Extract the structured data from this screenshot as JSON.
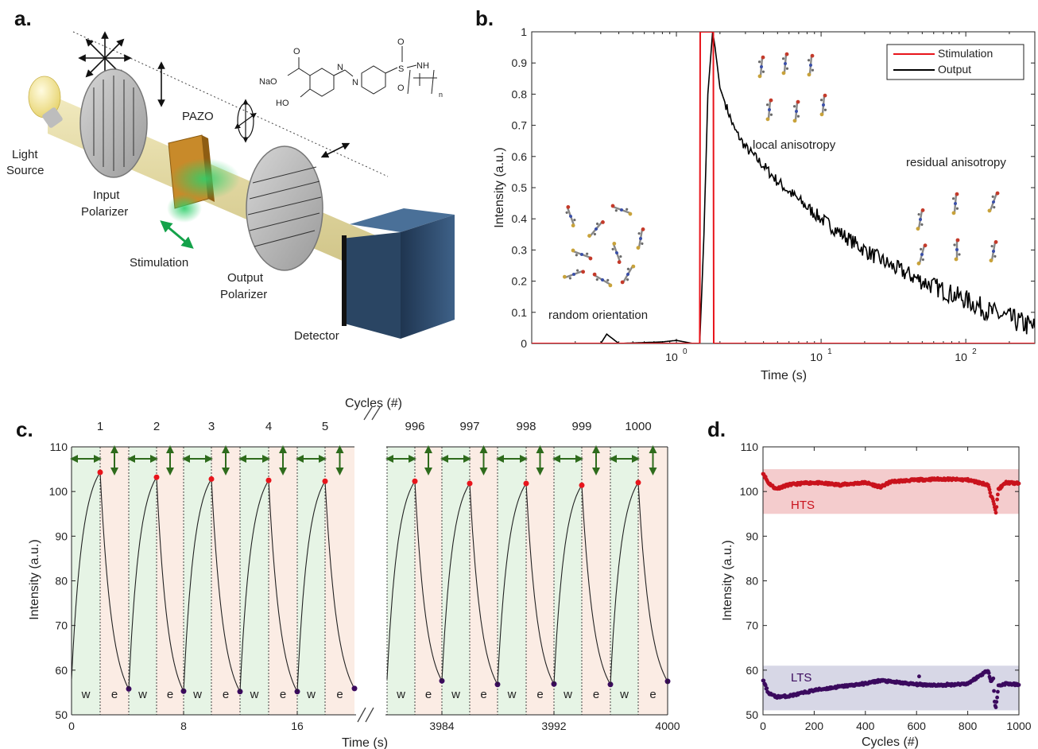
{
  "panels": {
    "a": "a.",
    "b": "b.",
    "c": "c.",
    "d": "d."
  },
  "schematic": {
    "light_source": [
      "Light",
      "Source"
    ],
    "input_polarizer": [
      "Input",
      "Polarizer"
    ],
    "pazo": "PAZO",
    "stimulation": "Stimulation",
    "output_polarizer": [
      "Output",
      "Polarizer"
    ],
    "detector": "Detector",
    "molecule": {
      "na": "NaO",
      "oh": "HO",
      "o": "O",
      "s": "S",
      "nh": "NH",
      "n": "n",
      "azo": "N"
    }
  },
  "colors": {
    "red": "#e8141b",
    "black": "#000000",
    "green_arrow": "#2e6b1c",
    "hts": "#c9131d",
    "lts": "#3b0a5e"
  },
  "chart_data": [
    {
      "panel": "b",
      "type": "line",
      "xlabel": "Time (s)",
      "ylabel": "Intensity (a.u.)",
      "xscale": "log",
      "xlim": [
        0.1,
        300
      ],
      "ylim": [
        0,
        1
      ],
      "xticks": [
        "10^0",
        "10^1",
        "10^2"
      ],
      "yticks": [
        "0",
        "0.1",
        "0.2",
        "0.3",
        "0.4",
        "0.5",
        "0.6",
        "0.7",
        "0.8",
        "0.9",
        "1"
      ],
      "legend": "top-right",
      "annotations": [
        "random orientation",
        "local anisotropy",
        "residual anisotropy"
      ],
      "series": [
        {
          "name": "Stimulation",
          "color": "#e8141b",
          "x": [
            0.1,
            1.45,
            1.46,
            1.8,
            1.81,
            300
          ],
          "y": [
            0,
            0,
            1,
            1,
            0,
            0
          ]
        },
        {
          "name": "Output",
          "color": "#000000",
          "x": [
            0.1,
            0.3,
            0.33,
            0.4,
            0.8,
            1.0,
            1.3,
            1.45,
            1.55,
            1.65,
            1.78,
            1.85,
            2.0,
            2.5,
            3,
            4,
            5,
            7,
            10,
            15,
            20,
            30,
            50,
            70,
            100,
            150,
            200,
            300
          ],
          "y": [
            0,
            0,
            0.03,
            0,
            0.005,
            0.01,
            0.0,
            0.0,
            0.35,
            0.8,
            1.0,
            0.95,
            0.82,
            0.69,
            0.63,
            0.57,
            0.52,
            0.46,
            0.4,
            0.34,
            0.3,
            0.25,
            0.2,
            0.17,
            0.14,
            0.1,
            0.08,
            0.05
          ]
        }
      ]
    },
    {
      "panel": "c",
      "type": "line",
      "xlabel": "Time (s)",
      "ylabel": "Intensity (a.u.)",
      "top_label": "Cycles  (#)",
      "ylim": [
        50,
        110
      ],
      "yticks": [
        "50",
        "60",
        "70",
        "80",
        "90",
        "100",
        "110"
      ],
      "xticks_left": [
        "0",
        "8",
        "16"
      ],
      "xticks_right": [
        "3984",
        "3992",
        "4000"
      ],
      "cycles": [
        "1",
        "2",
        "3",
        "4",
        "5",
        "996",
        "997",
        "998",
        "999",
        "1000"
      ],
      "phase_labels": [
        "w",
        "e"
      ],
      "peaks": [
        104.3,
        103.2,
        102.8,
        102.5,
        102.3,
        102.3,
        101.8,
        101.8,
        101.4,
        102.0
      ],
      "troughs": [
        55.8,
        55.3,
        55.2,
        55.2,
        55.9,
        57.6,
        56.8,
        56.9,
        56.8,
        57.5
      ],
      "start": 58.0
    },
    {
      "panel": "d",
      "type": "scatter",
      "xlabel": "Cycles (#)",
      "ylabel": "Intensity (a.u.)",
      "xlim": [
        0,
        1000
      ],
      "ylim": [
        50,
        110
      ],
      "xticks": [
        "0",
        "200",
        "400",
        "600",
        "800",
        "1000"
      ],
      "yticks": [
        "50",
        "60",
        "70",
        "80",
        "90",
        "100",
        "110"
      ],
      "bands": [
        {
          "name": "HTS",
          "range": [
            95,
            105
          ]
        },
        {
          "name": "LTS",
          "range": [
            51,
            61
          ]
        }
      ],
      "series": [
        {
          "name": "HTS",
          "color": "#c9131d",
          "x": [
            0,
            20,
            50,
            100,
            150,
            200,
            300,
            400,
            460,
            500,
            600,
            700,
            800,
            880,
            890,
            900,
            910,
            920,
            950,
            1000
          ],
          "y": [
            104.2,
            102.0,
            100.6,
            101.5,
            101.8,
            102.0,
            101.5,
            102.0,
            101.0,
            102.2,
            102.6,
            102.8,
            102.6,
            101.5,
            99.0,
            98.0,
            95.5,
            100.5,
            102.0,
            101.8
          ]
        },
        {
          "name": "LTS",
          "color": "#3b0a5e",
          "x": [
            0,
            20,
            50,
            100,
            150,
            200,
            300,
            400,
            460,
            500,
            600,
            700,
            800,
            880,
            890,
            900,
            905,
            910,
            920,
            950,
            1000
          ],
          "y": [
            57.8,
            55.0,
            54.0,
            54.2,
            54.8,
            55.5,
            56.3,
            57.0,
            57.7,
            57.4,
            56.8,
            56.6,
            57.0,
            60.0,
            57.5,
            58.0,
            53.0,
            51.5,
            56.5,
            57.0,
            56.7
          ]
        }
      ]
    }
  ]
}
